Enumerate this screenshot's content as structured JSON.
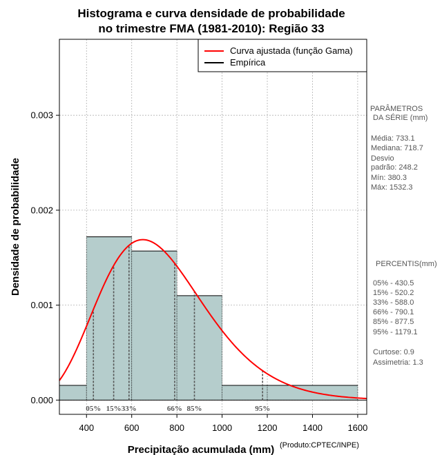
{
  "chart_data": {
    "type": "histogram",
    "title_line1": "Histograma e curva densidade de probabilidade",
    "title_line2": "no trimestre FMA (1981-2010): Região 33",
    "xlabel": "Precipitação acumulada (mm)",
    "ylabel": "Densidade de probabilidade",
    "credit": "(Produto:CPTEC/INPE)",
    "xlim": [
      280,
      1640
    ],
    "ylim": [
      -0.00015,
      0.0038
    ],
    "x_ticks": [
      400,
      600,
      800,
      1000,
      1200,
      1400,
      1600
    ],
    "y_ticks": [
      0.0,
      0.001,
      0.002,
      0.003
    ],
    "y_tick_labels": [
      "0.000",
      "0.001",
      "0.002",
      "0.003"
    ],
    "bins": [
      {
        "start": 200,
        "end": 400,
        "density": 0.000155
      },
      {
        "start": 400,
        "end": 600,
        "density": 0.00172
      },
      {
        "start": 600,
        "end": 800,
        "density": 0.00157
      },
      {
        "start": 800,
        "end": 1000,
        "density": 0.0011
      },
      {
        "start": 1000,
        "end": 1200,
        "density": 0.000155
      },
      {
        "start": 1200,
        "end": 1600,
        "density": 0.000155
      }
    ],
    "gamma_fit": {
      "mean": 733.1,
      "sd": 248.2
    },
    "legend": {
      "position": "top-right",
      "items": [
        {
          "label": "Curva ajustada (função Gama)",
          "color": "#ff0000"
        },
        {
          "label": "Empírica",
          "color": "#000000"
        }
      ]
    },
    "percentile_markers": [
      {
        "label": "05%",
        "value": 430.5
      },
      {
        "label": "15%",
        "value": 520.2
      },
      {
        "label": "33%",
        "value": 588.0
      },
      {
        "label": "66%",
        "value": 790.1
      },
      {
        "label": "85%",
        "value": 877.5
      },
      {
        "label": "95%",
        "value": 1179.1
      }
    ],
    "colors": {
      "bar_fill": "#b5cdcc",
      "curve": "#ff0000",
      "grid": "#b0b0b0",
      "marker": "#555555"
    }
  },
  "side_panel": {
    "params_title_1": "PARÂMETROS",
    "params_title_2": "DA SÉRIE (mm)",
    "media": "Média:  733.1",
    "mediana": "Mediana:  718.7",
    "desvio_1": "Desvio",
    "desvio_2": "padrão:  248.2",
    "min": "Mín:  380.3",
    "max": "Máx:  1532.3",
    "percentis_title": "PERCENTIS(mm)",
    "p05": "05% -   430.5",
    "p15": "15% -   520.2",
    "p33": "33% -   588.0",
    "p66": "66% -   790.1",
    "p85": "85% -   877.5",
    "p95": "95% -   1179.1",
    "curtose": "Curtose:  0.9",
    "assimetria": "Assimetria:  1.3"
  }
}
